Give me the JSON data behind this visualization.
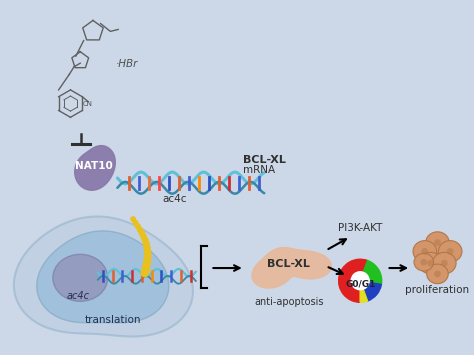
{
  "bg_color": "#ccd8e8",
  "nat10_color": "#8878a8",
  "nat10_text": "NAT10",
  "hbr_text": "·HBr",
  "mrna_text1": "BCL-XL",
  "mrna_text2": "mRNA",
  "ac4c_text1": "ac4c",
  "ac4c_text2": "ac4c",
  "bcl_xl_text": "BCL-XL",
  "anti_text": "anti-apoptosis",
  "pi3k_text": "PI3K-AKT",
  "g0g1_text": "G0/G1",
  "prolif_text": "proliferation",
  "translation_text": "translation",
  "cell_outer_color": "#b8cce0",
  "cell_inner_color": "#90b8d8",
  "nucleus_color": "#9090b8",
  "bcl_xl_shape_color": "#e8b898",
  "prolif_cell_color": "#d4956a",
  "mrna_wave_color1": "#60c0d8",
  "mrna_wave_color2": "#3888a8",
  "ribosome_color": "#e8c020",
  "tick_colors": [
    "#e06030",
    "#4060d0",
    "#e87040",
    "#ff4444",
    "#3050c0",
    "#e06030",
    "#4060d0",
    "#ff8800",
    "#3050c0",
    "#e06030",
    "#cc3030",
    "#4060d0"
  ],
  "cell_tick_colors": [
    "#3050c0",
    "#e06030",
    "#4060d0",
    "#cc3030",
    "#e06030",
    "#ff8800",
    "#3050c0",
    "#4060d0",
    "#e06030",
    "#cc3030"
  ],
  "g0g1_red": "#e02020",
  "g0g1_green": "#20c020",
  "g0g1_blue": "#2040c0",
  "g0g1_yellow": "#e0e020",
  "arrow_color": "#202020",
  "text_color": "#303030"
}
